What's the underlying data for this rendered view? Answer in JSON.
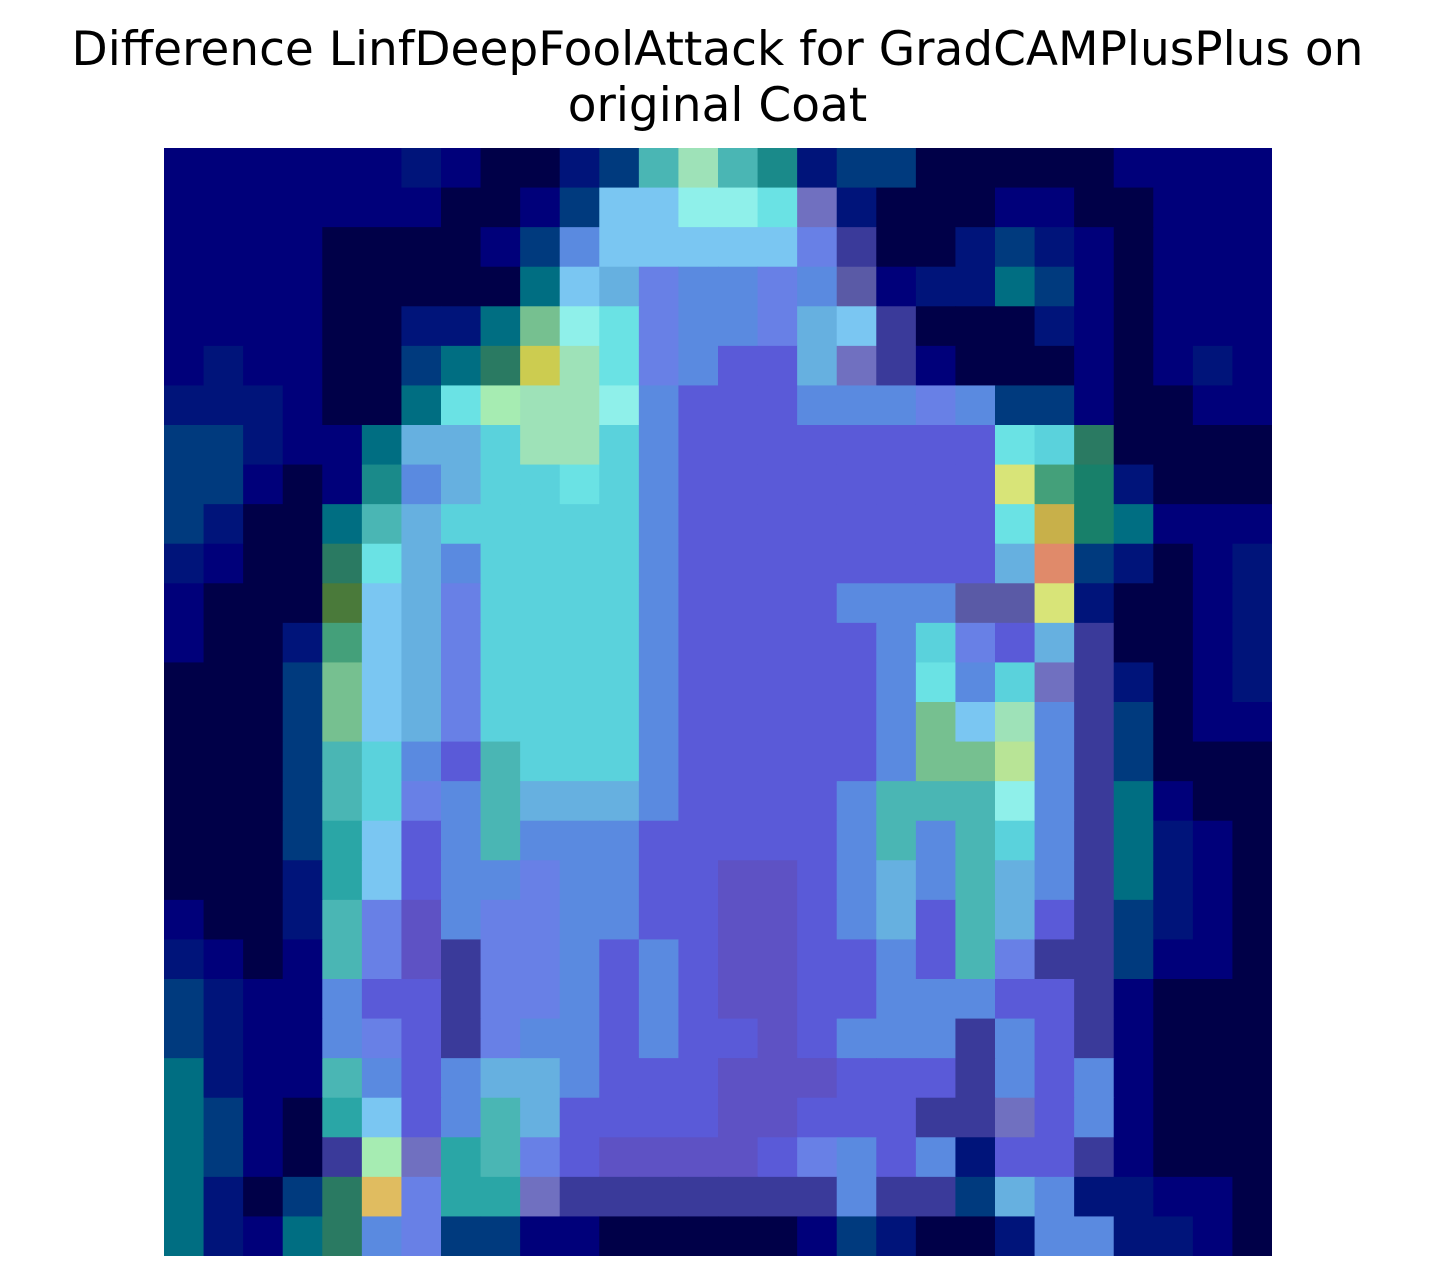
{
  "title_lines": [
    "Difference LinfDeepFoolAttack for GradCAMPlusPlus on",
    "original Coat"
  ],
  "chart_data": {
    "type": "heatmap",
    "title": "Difference LinfDeepFoolAttack for GradCAMPlusPlus on original Coat",
    "rows": 28,
    "cols": 28,
    "axes": "off",
    "grid": false,
    "legend": "none",
    "palette": {
      "N": "#00007a",
      "D": "#000048",
      "B": "#00147a",
      "T": "#003a7e",
      "G": "#006e82",
      "E": "#2a7a62",
      "O": "#4a7a3a",
      "Q": "#1a8a8a",
      "R": "#2aa6a6",
      "U": "#4ab6b4",
      "C": "#5ad2dc",
      "S": "#66b0e0",
      "A": "#6ae2e4",
      "L": "#7ac6f2",
      "F": "#8ff0ea",
      "M": "#9ee2b8",
      "P": "#5a8ae0",
      "K": "#6880e6",
      "I": "#5a5ad8",
      "V": "#5e52c4",
      "H": "#5a5aa6",
      "W": "#3a3a9a",
      "X": "#7070c0",
      "Y": "#cccc50",
      "Z": "#e08a6a",
      "J": "#d8e478",
      "g": "#c8b04a",
      "h": "#44a07a",
      "k": "#18806a",
      "l": "#e0bc60",
      "m": "#76c090",
      "n": "#b8e496",
      "o": "#a6ecb2"
    },
    "grid_rows": [
      "NNNNNNBNDDBTUMUQBTTDDDDDNNNN",
      "NNNNNNNDDNTLLFFAXBDDDNNDDNNN",
      "NNNNDDDDNTPLLLLLKWDDBTBNDNNN",
      "NNNNDDDDDGLSKPPKPHNBBGTNDNNN",
      "NNNNDDBBGmFAKPPKSLWDDDBNDNNN",
      "NBNNDDTGEYMAKPIISXWNDDDNDNBN",
      "BBBNDDGAoMMFPIIIPPPKPTTNDDNN",
      "TTBNNGSSCMMCPIIIIIIIIACEDDDD",
      "TTNDNQPSCCACPIIIIIIIIJhkBDDD",
      "TBDDGUSCCCCCPIIIIIIIIAgkGNNN",
      "BNDDEASPCCCCPIIIIIIIISZTBDNB",
      "NDDDOLSKCCCCPIIIIPPPHHJBDDNB",
      "NDDBhLSKCCCCPIIIIIPCKISWDDNB",
      "DDDTmLSKCCCCPIIIIIPAPCXWBDNB",
      "DDDTmLSKCCCCPIIIIIPmLMPWTDNN",
      "DDDTUCPIUCCCPIIIIIPmmnPWTDDD",
      "DDDTUCKPUSSSPIIIIPUUUFPWGNDD",
      "DDDTRLIPUPPPIIIIIPUPUCPWGBND",
      "DDDBRLIPPKPPIIVVIPSPUSPWGBND",
      "NDDBUKVPKKPPIIVVIPSIUSIWTBND",
      "BNDNUKVWKKPIPIVVIIPIUKWWTNND",
      "TBNNPIIWKKPIPIVVIIPPPIIWNDDD",
      "TBNNPKIWKPPIPIIVIPPPWPIWNDDD",
      "GBNNUPIPSSPIIIVVVIIIWPIPNDDD",
      "GTNDRLIPUSIIIIVVIIIWWXIPNDDD",
      "GTNDWoXRUKIVVVVIKPIPBIIWNDDD",
      "GBDTElKRRXWWWWWWWPWWTSPBBNND",
      "GBNGEPKTTNNDDDDDNTBDDBPPBBND"
    ]
  }
}
